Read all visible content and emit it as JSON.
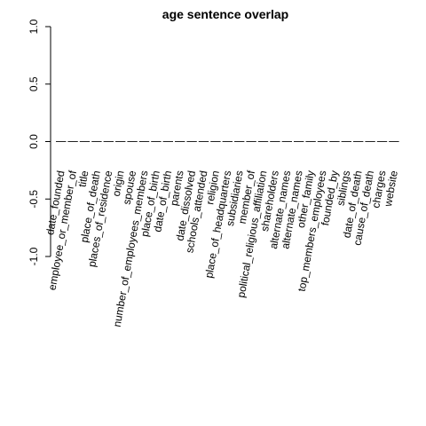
{
  "chart_data": {
    "type": "bar",
    "title": "age sentence overlap",
    "ylim": [
      -1.0,
      1.0
    ],
    "yticks": [
      -1.0,
      -0.5,
      0.0,
      0.5,
      1.0
    ],
    "ytick_labels": [
      "-1.0",
      "-0.5",
      "0.0",
      "0.5",
      "1.0"
    ],
    "grid": false,
    "categories": [
      "date_founded",
      "employee_or_member_of",
      "title",
      "place_of_death",
      "places_of_residence",
      "origin",
      "spouse",
      "number_of_employees_members",
      "place_of_birth",
      "date_of_birth",
      "parents",
      "date_dissolved",
      "schools_attended",
      "religion",
      "place_of_headquarters",
      "subsidiaries",
      "member_of",
      "political_religious_affiliation",
      "shareholders",
      "alternate_names",
      "alternate_names",
      "other_family",
      "top_members_employees",
      "founded_by",
      "siblings",
      "date_of_death",
      "cause_of_death",
      "charges",
      "website"
    ],
    "values": [
      0,
      0,
      0,
      0,
      0,
      0,
      0,
      0,
      0,
      0,
      0,
      0,
      0,
      0,
      0,
      0,
      0,
      0,
      0,
      0,
      0,
      0,
      0,
      0,
      0,
      0,
      0,
      0,
      0
    ]
  }
}
